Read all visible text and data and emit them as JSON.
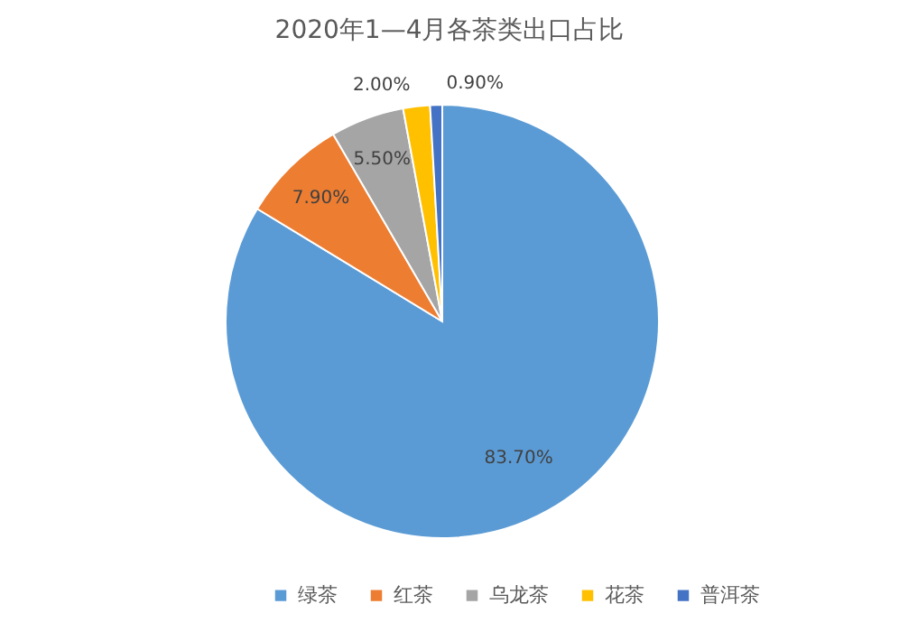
{
  "chart_data": {
    "type": "pie",
    "title": "2020年1—4月各茶类出口占比",
    "categories": [
      "绿茶",
      "红茶",
      "乌龙茶",
      "花茶",
      "普洱茶"
    ],
    "values": [
      83.7,
      7.9,
      5.5,
      2.0,
      0.9
    ],
    "colors": [
      "#5b9bd5",
      "#ed7d31",
      "#a5a5a5",
      "#ffc000",
      "#4472c4"
    ],
    "value_labels": [
      "83.70%",
      "7.90%",
      "5.50%",
      "2.00%",
      "0.90%"
    ],
    "legend": "bottom"
  }
}
